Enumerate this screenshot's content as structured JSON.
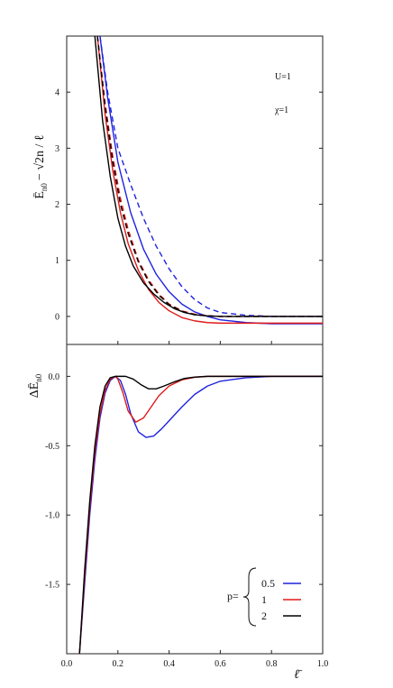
{
  "chart_data": [
    {
      "type": "line",
      "panel": "top",
      "ylabel": "Ē",
      "ylabel_sub": "n0",
      "ylabel_rest": "− √2n / ℓ",
      "xlim": [
        0,
        1
      ],
      "ylim": [
        -0.5,
        5.0
      ],
      "yticks": [
        0,
        1,
        2,
        3,
        4
      ],
      "annotations": [
        "U=1",
        "χ=1"
      ],
      "series": [
        {
          "color": "#1f22e0",
          "style": "solid",
          "x": [
            0.13,
            0.16,
            0.2,
            0.25,
            0.3,
            0.35,
            0.4,
            0.45,
            0.5,
            0.55,
            0.6,
            0.7,
            0.8,
            0.9,
            1.0
          ],
          "values": [
            5.0,
            3.9,
            2.75,
            1.85,
            1.2,
            0.75,
            0.44,
            0.22,
            0.08,
            0.0,
            -0.06,
            -0.11,
            -0.13,
            -0.13,
            -0.13
          ]
        },
        {
          "color": "#1f22e0",
          "style": "dashed",
          "x": [
            0.13,
            0.16,
            0.2,
            0.25,
            0.3,
            0.35,
            0.4,
            0.45,
            0.5,
            0.55,
            0.6,
            0.7,
            0.8,
            0.9,
            1.0
          ],
          "values": [
            5.0,
            4.0,
            3.0,
            2.35,
            1.75,
            1.25,
            0.85,
            0.53,
            0.3,
            0.15,
            0.07,
            0.02,
            0.0,
            0.0,
            0.0
          ]
        },
        {
          "color": "#e01a1a",
          "style": "solid",
          "x": [
            0.12,
            0.15,
            0.18,
            0.21,
            0.24,
            0.28,
            0.32,
            0.36,
            0.4,
            0.45,
            0.5,
            0.55,
            0.6,
            0.7,
            0.8,
            0.9,
            1.0
          ],
          "values": [
            5.0,
            3.6,
            2.6,
            1.85,
            1.3,
            0.82,
            0.48,
            0.25,
            0.1,
            -0.02,
            -0.08,
            -0.11,
            -0.12,
            -0.12,
            -0.12,
            -0.12,
            -0.12
          ]
        },
        {
          "color": "#e01a1a",
          "style": "dashed",
          "x": [
            0.12,
            0.15,
            0.18,
            0.21,
            0.24,
            0.28,
            0.32,
            0.36,
            0.4,
            0.45,
            0.5,
            0.55,
            0.6,
            0.7,
            0.8,
            0.9,
            1.0
          ],
          "values": [
            5.0,
            3.8,
            2.85,
            2.1,
            1.55,
            1.0,
            0.65,
            0.4,
            0.22,
            0.1,
            0.04,
            0.01,
            0.0,
            0.0,
            0.0,
            0.0,
            0.0
          ]
        },
        {
          "color": "#000000",
          "style": "solid",
          "x": [
            0.11,
            0.14,
            0.17,
            0.2,
            0.23,
            0.26,
            0.3,
            0.34,
            0.38,
            0.42,
            0.46,
            0.5,
            0.55,
            0.6,
            0.7,
            0.8,
            0.9,
            1.0
          ],
          "values": [
            5.0,
            3.5,
            2.5,
            1.75,
            1.25,
            0.9,
            0.6,
            0.4,
            0.25,
            0.14,
            0.07,
            0.03,
            0.01,
            0.0,
            0.0,
            0.0,
            0.0,
            0.0
          ]
        },
        {
          "color": "#000000",
          "style": "dashed",
          "x": [
            0.12,
            0.15,
            0.18,
            0.21,
            0.24,
            0.28,
            0.32,
            0.36,
            0.4,
            0.45,
            0.5,
            0.55,
            0.6,
            0.7,
            0.8,
            0.9,
            1.0
          ],
          "values": [
            5.0,
            3.75,
            2.75,
            2.0,
            1.48,
            0.97,
            0.62,
            0.38,
            0.21,
            0.09,
            0.03,
            0.01,
            0.0,
            0.0,
            0.0,
            0.0,
            0.0
          ]
        }
      ]
    },
    {
      "type": "line",
      "panel": "bottom",
      "ylabel": "ΔĒ",
      "ylabel_sub": "n0",
      "xlabel": "ℓ̄",
      "xlim": [
        0,
        1
      ],
      "ylim": [
        -2.0,
        0.23
      ],
      "yticks": [
        0.0,
        -0.5,
        -1.0,
        -1.5
      ],
      "ytick_labels": [
        "0.0",
        "-0.5",
        "-1.0",
        "-1.5"
      ],
      "xticks": [
        0.0,
        0.2,
        0.4,
        0.6,
        0.8,
        1.0
      ],
      "xtick_labels": [
        "0.0",
        "0.2",
        "0.4",
        "0.6",
        "0.8",
        "1.0"
      ],
      "legend": {
        "prefix": "p=",
        "entries": [
          "0.5",
          "1",
          "2"
        ],
        "placement": "bottom-right"
      },
      "series": [
        {
          "name": "0.5",
          "color": "#1f22e0",
          "x": [
            0.05,
            0.07,
            0.09,
            0.11,
            0.13,
            0.15,
            0.17,
            0.19,
            0.21,
            0.23,
            0.25,
            0.28,
            0.31,
            0.34,
            0.37,
            0.4,
            0.45,
            0.5,
            0.55,
            0.6,
            0.7,
            0.8,
            0.9,
            1.0
          ],
          "values": [
            -2.0,
            -1.5,
            -1.0,
            -0.6,
            -0.3,
            -0.12,
            -0.03,
            0.0,
            -0.03,
            -0.13,
            -0.27,
            -0.4,
            -0.44,
            -0.43,
            -0.38,
            -0.32,
            -0.22,
            -0.13,
            -0.07,
            -0.035,
            -0.01,
            0.0,
            0.0,
            0.0
          ]
        },
        {
          "name": "1",
          "color": "#e01a1a",
          "x": [
            0.05,
            0.07,
            0.09,
            0.11,
            0.13,
            0.15,
            0.17,
            0.19,
            0.2,
            0.22,
            0.24,
            0.27,
            0.3,
            0.33,
            0.36,
            0.4,
            0.45,
            0.5,
            0.55,
            0.6,
            0.7,
            0.8,
            0.9,
            1.0
          ],
          "values": [
            -2.0,
            -1.45,
            -0.95,
            -0.55,
            -0.27,
            -0.1,
            -0.02,
            0.0,
            -0.02,
            -0.12,
            -0.25,
            -0.33,
            -0.3,
            -0.22,
            -0.14,
            -0.07,
            -0.025,
            -0.007,
            0.0,
            0.0,
            0.0,
            0.0,
            0.0,
            0.0
          ]
        },
        {
          "name": "2",
          "color": "#000000",
          "x": [
            0.05,
            0.07,
            0.09,
            0.11,
            0.13,
            0.15,
            0.17,
            0.19,
            0.21,
            0.23,
            0.26,
            0.29,
            0.32,
            0.35,
            0.38,
            0.42,
            0.46,
            0.5,
            0.55,
            0.6,
            0.7,
            0.8,
            0.9,
            1.0
          ],
          "values": [
            -2.0,
            -1.4,
            -0.9,
            -0.5,
            -0.22,
            -0.07,
            -0.01,
            0.0,
            0.0,
            0.0,
            -0.02,
            -0.06,
            -0.09,
            -0.09,
            -0.07,
            -0.04,
            -0.015,
            -0.005,
            0.0,
            0.0,
            0.0,
            0.0,
            0.0,
            0.0
          ]
        }
      ]
    }
  ]
}
